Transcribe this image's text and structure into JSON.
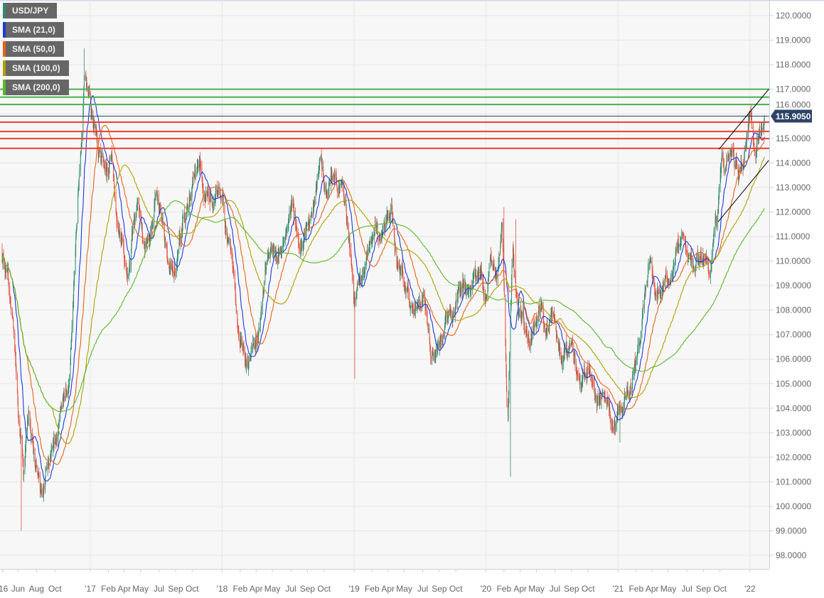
{
  "chart_data": {
    "type": "candlestick",
    "symbol": "USD/JPY",
    "legend": [
      {
        "label": "USD/JPY",
        "color": "#2e8b6f"
      },
      {
        "label": "SMA (21,0)",
        "color": "#1a3be0",
        "period": 21
      },
      {
        "label": "SMA (50,0)",
        "color": "#e8641a",
        "period": 50
      },
      {
        "label": "SMA (100,0)",
        "color": "#b0a000",
        "period": 100
      },
      {
        "label": "SMA (200,0)",
        "color": "#5cb82a",
        "period": 200
      }
    ],
    "legend_placement": "top-left",
    "colors": {
      "up": "#2e8b6f",
      "down": "#e0523f",
      "plot_bg": "#f7f7f7",
      "grid": "#e6e6e6",
      "last_price_bg": "#2b4366",
      "last_price_line": "#2b4366",
      "support_lines": "#f04030",
      "resistance_lines": "#4caf50",
      "trendlines": "#000000"
    },
    "ylim": [
      97.5,
      120.6
    ],
    "yticks": [
      98,
      99,
      100,
      101,
      102,
      103,
      104,
      105,
      106,
      107,
      108,
      109,
      110,
      111,
      112,
      113,
      114,
      115,
      116,
      117,
      118,
      119,
      120
    ],
    "y_tick_decimals": 4,
    "y_axis_position": "right",
    "grid": true,
    "last_price": 115.905,
    "last_price_label": "115.9050",
    "xticks": [
      {
        "label": "'16",
        "date": "2016-05-03"
      },
      {
        "label": "Jun",
        "date": "2016-06-15"
      },
      {
        "label": "Aug",
        "date": "2016-08-05"
      },
      {
        "label": "Oct",
        "date": "2016-09-25"
      },
      {
        "label": "'17",
        "date": "2017-01-01"
      },
      {
        "label": "Feb",
        "date": "2017-02-20"
      },
      {
        "label": "Apr",
        "date": "2017-04-05"
      },
      {
        "label": "May",
        "date": "2017-05-20"
      },
      {
        "label": "Jul",
        "date": "2017-07-10"
      },
      {
        "label": "Sep",
        "date": "2017-08-25"
      },
      {
        "label": "Oct",
        "date": "2017-10-10"
      },
      {
        "label": "'18",
        "date": "2018-01-01"
      },
      {
        "label": "Feb",
        "date": "2018-02-20"
      },
      {
        "label": "Apr",
        "date": "2018-04-05"
      },
      {
        "label": "May",
        "date": "2018-05-20"
      },
      {
        "label": "Jul",
        "date": "2018-07-10"
      },
      {
        "label": "Sep",
        "date": "2018-08-25"
      },
      {
        "label": "Oct",
        "date": "2018-10-10"
      },
      {
        "label": "'19",
        "date": "2019-01-01"
      },
      {
        "label": "Feb",
        "date": "2019-02-20"
      },
      {
        "label": "Apr",
        "date": "2019-04-05"
      },
      {
        "label": "May",
        "date": "2019-05-20"
      },
      {
        "label": "Jul",
        "date": "2019-07-10"
      },
      {
        "label": "Sep",
        "date": "2019-08-25"
      },
      {
        "label": "Oct",
        "date": "2019-10-10"
      },
      {
        "label": "'20",
        "date": "2020-01-01"
      },
      {
        "label": "Feb",
        "date": "2020-02-20"
      },
      {
        "label": "Apr",
        "date": "2020-04-05"
      },
      {
        "label": "May",
        "date": "2020-05-20"
      },
      {
        "label": "Jul",
        "date": "2020-07-10"
      },
      {
        "label": "Sep",
        "date": "2020-08-25"
      },
      {
        "label": "Oct",
        "date": "2020-10-10"
      },
      {
        "label": "'21",
        "date": "2021-01-01"
      },
      {
        "label": "Feb",
        "date": "2021-02-20"
      },
      {
        "label": "Apr",
        "date": "2021-04-05"
      },
      {
        "label": "May",
        "date": "2021-05-20"
      },
      {
        "label": "Jul",
        "date": "2021-07-10"
      },
      {
        "label": "Sep",
        "date": "2021-08-25"
      },
      {
        "label": "Oct",
        "date": "2021-10-10"
      },
      {
        "label": "'22",
        "date": "2022-01-01"
      }
    ],
    "year_gridlines": [
      "2017-01-01",
      "2018-01-01",
      "2019-01-01",
      "2020-01-01",
      "2021-01-01",
      "2022-01-01"
    ],
    "price_path": {
      "x": [
        "2016-05-01",
        "2016-05-15",
        "2016-06-01",
        "2016-06-15",
        "2016-07-01",
        "2016-07-15",
        "2016-08-01",
        "2016-08-15",
        "2016-09-01",
        "2016-09-15",
        "2016-10-01",
        "2016-10-15",
        "2016-11-01",
        "2016-11-15",
        "2016-12-01",
        "2016-12-15",
        "2017-01-01",
        "2017-01-15",
        "2017-02-01",
        "2017-02-15",
        "2017-03-01",
        "2017-03-15",
        "2017-04-01",
        "2017-04-15",
        "2017-05-01",
        "2017-05-15",
        "2017-06-01",
        "2017-06-15",
        "2017-07-01",
        "2017-07-15",
        "2017-08-01",
        "2017-08-15",
        "2017-09-01",
        "2017-09-15",
        "2017-10-01",
        "2017-10-15",
        "2017-11-01",
        "2017-11-15",
        "2017-12-01",
        "2017-12-15",
        "2018-01-01",
        "2018-01-15",
        "2018-02-01",
        "2018-02-15",
        "2018-03-01",
        "2018-03-15",
        "2018-04-01",
        "2018-04-15",
        "2018-05-01",
        "2018-05-15",
        "2018-06-01",
        "2018-06-15",
        "2018-07-01",
        "2018-07-15",
        "2018-08-01",
        "2018-08-15",
        "2018-09-01",
        "2018-09-15",
        "2018-10-01",
        "2018-10-15",
        "2018-11-01",
        "2018-11-15",
        "2018-12-01",
        "2018-12-15",
        "2019-01-01",
        "2019-01-15",
        "2019-02-01",
        "2019-02-15",
        "2019-03-01",
        "2019-03-15",
        "2019-04-01",
        "2019-04-15",
        "2019-05-01",
        "2019-05-15",
        "2019-06-01",
        "2019-06-15",
        "2019-07-01",
        "2019-07-15",
        "2019-08-01",
        "2019-08-15",
        "2019-09-01",
        "2019-09-15",
        "2019-10-01",
        "2019-10-15",
        "2019-11-01",
        "2019-11-15",
        "2019-12-01",
        "2019-12-15",
        "2020-01-01",
        "2020-01-15",
        "2020-02-01",
        "2020-02-15",
        "2020-03-01",
        "2020-03-15",
        "2020-04-01",
        "2020-04-15",
        "2020-05-01",
        "2020-05-15",
        "2020-06-01",
        "2020-06-15",
        "2020-07-01",
        "2020-07-15",
        "2020-08-01",
        "2020-08-15",
        "2020-09-01",
        "2020-09-15",
        "2020-10-01",
        "2020-10-15",
        "2020-11-01",
        "2020-11-15",
        "2020-12-01",
        "2020-12-15",
        "2021-01-01",
        "2021-01-15",
        "2021-02-01",
        "2021-02-15",
        "2021-03-01",
        "2021-03-15",
        "2021-04-01",
        "2021-04-15",
        "2021-05-01",
        "2021-05-15",
        "2021-06-01",
        "2021-06-15",
        "2021-07-01",
        "2021-07-15",
        "2021-08-01",
        "2021-08-15",
        "2021-09-01",
        "2021-09-15",
        "2021-10-01",
        "2021-10-15",
        "2021-11-01",
        "2021-11-15",
        "2021-12-01",
        "2021-12-15",
        "2022-01-01",
        "2022-01-15",
        "2022-02-10"
      ],
      "close": [
        110.5,
        109.5,
        107.5,
        104,
        101.5,
        104,
        101.5,
        100.5,
        101.5,
        102.5,
        103,
        104,
        105,
        108.5,
        113.5,
        117.5,
        116.5,
        115,
        113.5,
        113.5,
        114.5,
        112,
        111,
        109,
        111.5,
        112,
        110.5,
        111,
        113,
        112,
        110.5,
        109.5,
        110,
        111.5,
        112.5,
        113.5,
        113.8,
        112.5,
        112.5,
        113,
        112.5,
        111,
        109.5,
        107,
        106.5,
        106,
        106.5,
        107.5,
        109.5,
        110.5,
        110,
        110.5,
        111.5,
        112.5,
        111,
        110.8,
        111.5,
        112.5,
        114,
        112.5,
        113.5,
        113.3,
        113,
        111.5,
        108.5,
        109.5,
        109.5,
        110.5,
        111.5,
        110.8,
        111.5,
        111.8,
        110,
        109.5,
        108.5,
        107.5,
        108.3,
        108.5,
        106.5,
        106,
        106.8,
        108,
        107.8,
        108.5,
        109,
        108.8,
        109.5,
        109.5,
        108.5,
        110,
        109.5,
        111.5,
        103,
        110.5,
        107.5,
        107.5,
        106.5,
        107.5,
        108.5,
        107,
        107.5,
        107,
        105.8,
        106.5,
        106,
        105,
        105.5,
        105.3,
        104.5,
        104.2,
        104,
        103.3,
        103.5,
        103.8,
        104.8,
        105.5,
        106.8,
        108.8,
        110,
        108.5,
        109,
        109.5,
        109.5,
        110.5,
        111,
        110,
        109.8,
        110,
        110,
        109.8,
        111.5,
        114,
        114,
        114.3,
        113.5,
        114,
        115.8,
        114.3,
        115.9
      ]
    },
    "extremes": [
      {
        "date": "2016-06-24",
        "low": 99.0
      },
      {
        "date": "2016-12-15",
        "high": 118.66
      },
      {
        "date": "2019-01-03",
        "low": 105.2
      },
      {
        "date": "2020-02-20",
        "high": 112.2
      },
      {
        "date": "2020-03-09",
        "low": 101.2
      },
      {
        "date": "2020-03-24",
        "high": 111.7
      },
      {
        "date": "2021-01-06",
        "low": 102.6
      },
      {
        "date": "2022-01-04",
        "high": 116.35
      }
    ],
    "horizontal_levels": [
      {
        "price": 117.0,
        "color": "#4caf50"
      },
      {
        "price": 116.68,
        "color": "#4caf50"
      },
      {
        "price": 116.38,
        "color": "#4caf50"
      },
      {
        "price": 115.66,
        "color": "#f04030"
      },
      {
        "price": 115.28,
        "color": "#f04030"
      },
      {
        "price": 114.99,
        "color": "#f04030"
      },
      {
        "price": 114.59,
        "color": "#f04030"
      }
    ],
    "trendlines": [
      {
        "from": {
          "date": "2021-10-07",
          "price": 114.55
        },
        "to": {
          "date": "2022-02-22",
          "price": 117.0
        }
      },
      {
        "from": {
          "date": "2021-10-05",
          "price": 111.6
        },
        "to": {
          "date": "2022-02-22",
          "price": 114.1
        }
      }
    ]
  }
}
